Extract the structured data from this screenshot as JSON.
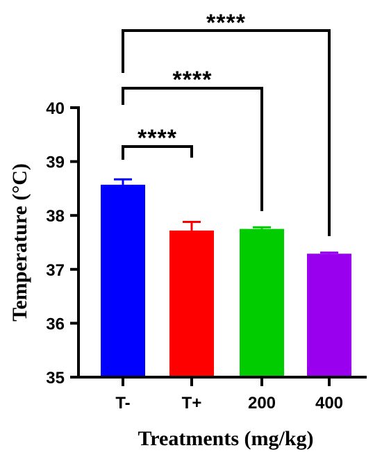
{
  "chart_data": {
    "type": "bar",
    "categories": [
      "T-",
      "T+",
      "200",
      "400"
    ],
    "values": [
      38.57,
      37.72,
      37.75,
      37.29
    ],
    "errors": [
      0.1,
      0.16,
      0.03,
      0.02
    ],
    "colors": [
      "#0000ff",
      "#ff0000",
      "#00cc00",
      "#9900ee"
    ],
    "xlabel": "Treatments (mg/kg)",
    "ylabel": "Temperature (°C)",
    "ylim": [
      35,
      40
    ],
    "yticks": [
      "35",
      "36",
      "37",
      "38",
      "39",
      "40"
    ],
    "grid": false,
    "significance": [
      {
        "from": "T-",
        "to": "T+",
        "label": "****"
      },
      {
        "from": "T-",
        "to": "200",
        "label": "****"
      },
      {
        "from": "T-",
        "to": "400",
        "label": "****"
      }
    ]
  }
}
